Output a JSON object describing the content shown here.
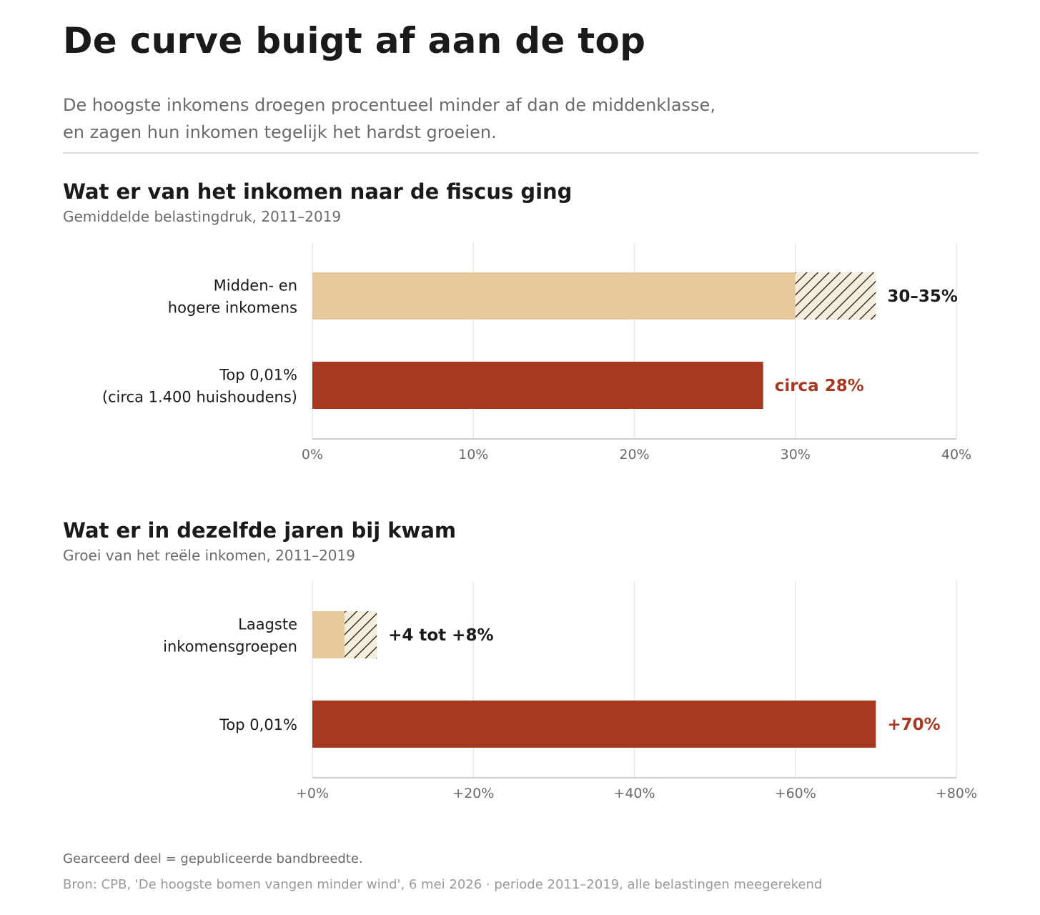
{
  "header": {
    "title": "De curve buigt af aan de top",
    "subtitle_lines": [
      "De hoogste inkomens droegen procentueel minder af dan de middenklasse,",
      "en zagen hun inkomen tegelijk het hardst groeien."
    ]
  },
  "colors": {
    "middle": "#e8c99b",
    "top": "#a83820",
    "hatch": "#1a1a1a",
    "grid": "#e8e7e2",
    "axis": "#cfcec9",
    "tick_text": "#6b6a66",
    "label_text": "#1a1a1a"
  },
  "chart_data": [
    {
      "type": "bar",
      "orientation": "horizontal",
      "title": "Wat er van het inkomen naar de fiscus ging",
      "subtitle": "Gemiddelde belastingdruk, 2011–2019",
      "xlim": [
        0,
        40
      ],
      "ticks": [
        0,
        10,
        20,
        30,
        40
      ],
      "tick_labels": [
        "0%",
        "10%",
        "20%",
        "30%",
        "40%"
      ],
      "grid": true,
      "bars": [
        {
          "category_lines": [
            "Midden- en",
            "hogere inkomens"
          ],
          "value": 30,
          "range_high": 35,
          "value_label": "30–35%",
          "color_key": "middle",
          "label_color_key": "label_text"
        },
        {
          "category_lines": [
            "Top 0,01%",
            "(circa 1.400 huishoudens)"
          ],
          "value": 28,
          "value_label": "circa 28%",
          "color_key": "top",
          "label_color_key": "top"
        }
      ]
    },
    {
      "type": "bar",
      "orientation": "horizontal",
      "title": "Wat er in dezelfde jaren bij kwam",
      "subtitle": "Groei van het reële inkomen, 2011–2019",
      "xlim": [
        0,
        80
      ],
      "ticks": [
        0,
        20,
        40,
        60,
        80
      ],
      "tick_labels": [
        "+0%",
        "+20%",
        "+40%",
        "+60%",
        "+80%"
      ],
      "grid": true,
      "bars": [
        {
          "category_lines": [
            "Laagste",
            "inkomensgroepen"
          ],
          "value": 4,
          "range_high": 8,
          "value_label": "+4 tot +8%",
          "color_key": "middle",
          "label_color_key": "label_text"
        },
        {
          "category_lines": [
            "Top 0,01%"
          ],
          "value": 70,
          "value_label": "+70%",
          "color_key": "top",
          "label_color_key": "top"
        }
      ]
    }
  ],
  "footer": {
    "note": "Gearceerd deel = gepubliceerde bandbreedte.",
    "source": "Bron: CPB, 'De hoogste bomen vangen minder wind', 6 mei 2026  ·  periode 2011–2019, alle belastingen meegerekend"
  }
}
